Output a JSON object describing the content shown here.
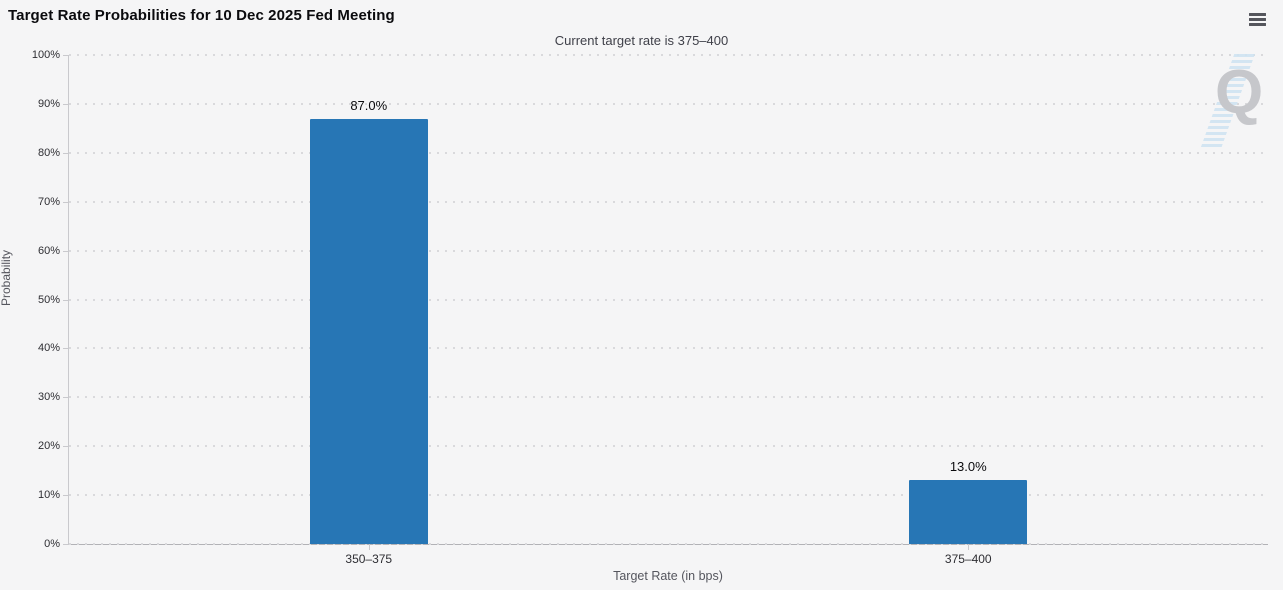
{
  "header": {
    "title": "Target Rate Probabilities for 10 Dec 2025 Fed Meeting",
    "subtitle": "Current target rate is 375–400"
  },
  "icons": {
    "menu": "hamburger-menu-icon",
    "watermark_letter": "Q"
  },
  "chart_data": {
    "type": "bar",
    "title": "Target Rate Probabilities for 10 Dec 2025 Fed Meeting",
    "subtitle": "Current target rate is 375–400",
    "categories": [
      "350–375",
      "375–400"
    ],
    "values": [
      87.0,
      13.0
    ],
    "value_labels": [
      "87.0%",
      "13.0%"
    ],
    "xlabel": "Target Rate (in bps)",
    "ylabel": "Probability",
    "ylim": [
      0,
      100
    ],
    "ytick_step": 10,
    "ytick_labels": [
      "0%",
      "10%",
      "20%",
      "30%",
      "40%",
      "50%",
      "60%",
      "70%",
      "80%",
      "90%",
      "100%"
    ],
    "grid": "dotted-horizontal",
    "legend": "none",
    "bar_color": "#2776b5"
  }
}
